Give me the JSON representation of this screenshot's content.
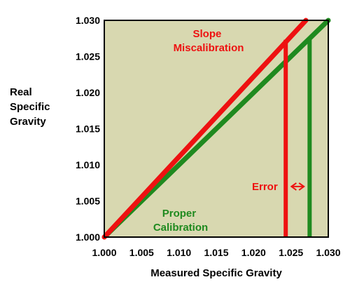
{
  "chart_data": {
    "type": "line",
    "title": "",
    "xlabel": "Measured Specific Gravity",
    "ylabel_lines": [
      "Real",
      "Specific",
      "Gravity"
    ],
    "xlim": [
      1.0,
      1.03
    ],
    "ylim": [
      1.0,
      1.03
    ],
    "x_ticks": [
      "1.000",
      "1.005",
      "1.010",
      "1.015",
      "1.020",
      "1.025",
      "1.030"
    ],
    "y_ticks": [
      "1.000",
      "1.005",
      "1.010",
      "1.015",
      "1.020",
      "1.025",
      "1.030"
    ],
    "grid": false,
    "background": "#d8d8b0",
    "series": [
      {
        "name": "Slope Miscalibration",
        "label_lines": [
          "Slope",
          "Miscalibration"
        ],
        "color": "#ee1111",
        "x": [
          1.0,
          1.027
        ],
        "y": [
          1.0,
          1.03
        ],
        "drop_line": {
          "x": 1.0243,
          "y_top": 1.0273
        }
      },
      {
        "name": "Proper Calibration",
        "label_lines": [
          "Proper",
          "Calibration"
        ],
        "color": "#1f8a1f",
        "x": [
          1.0,
          1.03
        ],
        "y": [
          1.0,
          1.03
        ],
        "drop_line": {
          "x": 1.0275,
          "y_top": 1.0275
        }
      }
    ],
    "annotations": {
      "error_label": "Error",
      "error_arrow": {
        "x_from": 1.0245,
        "x_to": 1.0273,
        "y": 1.007
      }
    }
  }
}
